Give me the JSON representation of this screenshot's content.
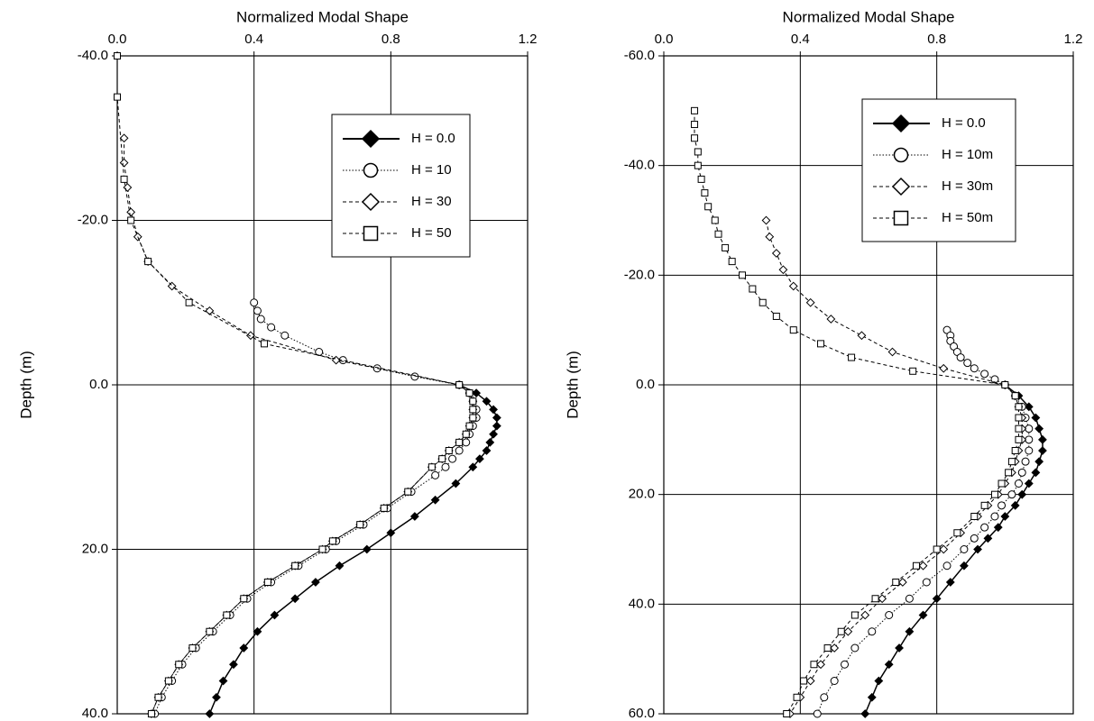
{
  "chart_data": [
    {
      "type": "line",
      "title": "Normalized Modal Shape",
      "y_label": "Depth (m)",
      "xlim": [
        0,
        1.2
      ],
      "xticks": [
        {
          "value": 0,
          "label": "0.0"
        },
        0.4,
        0.8,
        1.2
      ],
      "ylim": [
        -40,
        40
      ],
      "yticks": [
        {
          "value": -40,
          "label": "-40.0"
        },
        {
          "value": -20,
          "label": "-20.0"
        },
        {
          "value": 0,
          "label": "0.0"
        },
        {
          "value": 20,
          "label": "20.0"
        },
        {
          "value": 40,
          "label": "40.0"
        }
      ],
      "y_inverted": true,
      "grid": true,
      "legend": "upper right",
      "series": [
        {
          "name": "H = 0.0",
          "color": "#000000",
          "line_style": "solid",
          "marker": "diamond-filled",
          "x": [
            1.0,
            1.05,
            1.08,
            1.1,
            1.11,
            1.11,
            1.1,
            1.09,
            1.08,
            1.06,
            1.04,
            0.99,
            0.93,
            0.87,
            0.8,
            0.73,
            0.65,
            0.58,
            0.52,
            0.46,
            0.41,
            0.37,
            0.34,
            0.31,
            0.29,
            0.27
          ],
          "y": [
            0,
            1,
            2,
            3,
            4,
            5,
            6,
            7,
            8,
            9,
            10,
            12,
            14,
            16,
            18,
            20,
            22,
            24,
            26,
            28,
            30,
            32,
            34,
            36,
            38,
            40
          ]
        },
        {
          "name": "H = 10",
          "color": "#000000",
          "line_style": "dotted",
          "marker": "circle",
          "x": [
            0.4,
            0.41,
            0.42,
            0.45,
            0.49,
            0.59,
            0.66,
            0.76,
            0.87,
            1.0,
            1.03,
            1.04,
            1.05,
            1.05,
            1.04,
            1.03,
            1.02,
            1.0,
            0.98,
            0.96,
            0.93,
            0.86,
            0.79,
            0.72,
            0.64,
            0.61,
            0.53,
            0.45,
            0.38,
            0.33,
            0.28,
            0.23,
            0.19,
            0.16,
            0.13,
            0.11
          ],
          "y": [
            -10,
            -9,
            -8,
            -7,
            -6,
            -4,
            -3,
            -2,
            -1,
            0,
            1,
            2,
            3,
            4,
            5,
            6,
            7,
            8,
            9,
            10,
            11,
            13,
            15,
            17,
            19,
            20,
            22,
            24,
            26,
            28,
            30,
            32,
            34,
            36,
            38,
            40
          ]
        },
        {
          "name": "H = 30",
          "color": "#000000",
          "line_style": "dashed",
          "marker": "diamond",
          "x": [
            0.02,
            0.02,
            0.03,
            0.04,
            0.06,
            0.09,
            0.16,
            0.27,
            0.39,
            0.64,
            1.0,
            1.03,
            1.04,
            1.04,
            1.04,
            1.03,
            1.02,
            1.0,
            0.97,
            0.95,
            0.92,
            0.85,
            0.78,
            0.71,
            0.63,
            0.6,
            0.52,
            0.44,
            0.37,
            0.32,
            0.27,
            0.22,
            0.18,
            0.15,
            0.12,
            0.1
          ],
          "y": [
            -30,
            -27,
            -24,
            -21,
            -18,
            -15,
            -12,
            -9,
            -6,
            -3,
            0,
            1,
            2,
            3,
            4,
            5,
            6,
            7,
            8,
            9,
            10,
            13,
            15,
            17,
            19,
            20,
            22,
            24,
            26,
            28,
            30,
            32,
            34,
            36,
            38,
            40
          ]
        },
        {
          "name": "H = 50",
          "color": "#000000",
          "line_style": "dashed",
          "marker": "square",
          "x": [
            0.0,
            0.0,
            0.02,
            0.04,
            0.09,
            0.21,
            0.43,
            1.0,
            1.03,
            1.04,
            1.04,
            1.04,
            1.03,
            1.02,
            1.0,
            0.97,
            0.95,
            0.92,
            0.85,
            0.78,
            0.71,
            0.63,
            0.6,
            0.52,
            0.44,
            0.37,
            0.32,
            0.27,
            0.22,
            0.18,
            0.15,
            0.12,
            0.1
          ],
          "y": [
            -40,
            -35,
            -25,
            -20,
            -15,
            -10,
            -5,
            0,
            1,
            2,
            3,
            4,
            5,
            6,
            7,
            8,
            9,
            10,
            13,
            15,
            17,
            19,
            20,
            22,
            24,
            26,
            28,
            30,
            32,
            34,
            36,
            38,
            40
          ]
        }
      ]
    },
    {
      "type": "line",
      "title": "Normalized Modal Shape",
      "y_label": "Depth (m)",
      "xlim": [
        0,
        1.2
      ],
      "xticks": [
        {
          "value": 0,
          "label": "0.0"
        },
        0.4,
        0.8,
        1.2
      ],
      "ylim": [
        -60,
        60
      ],
      "yticks": [
        {
          "value": -60,
          "label": "-60.0"
        },
        {
          "value": -40,
          "label": "-40.0"
        },
        {
          "value": -20,
          "label": "-20.0"
        },
        {
          "value": 0,
          "label": "0.0"
        },
        {
          "value": 20,
          "label": "20.0"
        },
        {
          "value": 40,
          "label": "40.0"
        },
        {
          "value": 60,
          "label": "60.0"
        }
      ],
      "y_inverted": true,
      "grid": true,
      "legend": "upper right",
      "series": [
        {
          "name": "H = 0.0",
          "color": "#000000",
          "line_style": "solid",
          "marker": "diamond-filled",
          "x": [
            1.0,
            1.04,
            1.07,
            1.09,
            1.1,
            1.11,
            1.11,
            1.1,
            1.09,
            1.07,
            1.05,
            1.03,
            1.0,
            0.98,
            0.95,
            0.92,
            0.88,
            0.84,
            0.8,
            0.76,
            0.72,
            0.69,
            0.66,
            0.63,
            0.61,
            0.59
          ],
          "y": [
            0,
            2,
            4,
            6,
            8,
            10,
            12,
            14,
            16,
            18,
            20,
            22,
            24,
            26,
            28,
            30,
            33,
            36,
            39,
            42,
            45,
            48,
            51,
            54,
            57,
            60
          ]
        },
        {
          "name": "H = 10m",
          "color": "#000000",
          "line_style": "dotted",
          "marker": "circle",
          "x": [
            0.83,
            0.84,
            0.84,
            0.85,
            0.86,
            0.87,
            0.89,
            0.91,
            0.94,
            0.97,
            1.0,
            1.03,
            1.05,
            1.06,
            1.07,
            1.07,
            1.07,
            1.06,
            1.05,
            1.04,
            1.02,
            0.99,
            0.97,
            0.94,
            0.91,
            0.88,
            0.83,
            0.77,
            0.72,
            0.66,
            0.61,
            0.56,
            0.53,
            0.5,
            0.47,
            0.45
          ],
          "y": [
            -10,
            -9,
            -8,
            -7,
            -6,
            -5,
            -4,
            -3,
            -2,
            -1,
            0,
            2,
            4,
            6,
            8,
            10,
            12,
            14,
            16,
            18,
            20,
            22,
            24,
            26,
            28,
            30,
            33,
            36,
            39,
            42,
            45,
            48,
            51,
            54,
            57,
            60
          ]
        },
        {
          "name": "H = 30m",
          "color": "#000000",
          "line_style": "dashed",
          "marker": "diamond",
          "x": [
            0.3,
            0.31,
            0.33,
            0.35,
            0.38,
            0.43,
            0.49,
            0.58,
            0.67,
            0.82,
            1.0,
            1.03,
            1.04,
            1.05,
            1.05,
            1.05,
            1.04,
            1.03,
            1.02,
            1.0,
            0.98,
            0.95,
            0.92,
            0.87,
            0.82,
            0.76,
            0.7,
            0.64,
            0.59,
            0.54,
            0.5,
            0.46,
            0.43,
            0.4,
            0.37
          ],
          "y": [
            -30,
            -27,
            -24,
            -21,
            -18,
            -15,
            -12,
            -9,
            -6,
            -3,
            0,
            2,
            4,
            6,
            8,
            10,
            12,
            14,
            16,
            18,
            20,
            22,
            24,
            27,
            30,
            33,
            36,
            39,
            42,
            45,
            48,
            51,
            54,
            57,
            60
          ]
        },
        {
          "name": "H = 50m",
          "color": "#000000",
          "line_style": "dashed",
          "marker": "square",
          "x": [
            0.09,
            0.09,
            0.09,
            0.1,
            0.1,
            0.11,
            0.12,
            0.13,
            0.15,
            0.16,
            0.18,
            0.2,
            0.23,
            0.26,
            0.29,
            0.33,
            0.38,
            0.46,
            0.55,
            0.73,
            1.0,
            1.03,
            1.04,
            1.04,
            1.04,
            1.04,
            1.03,
            1.02,
            1.01,
            0.99,
            0.97,
            0.94,
            0.91,
            0.86,
            0.8,
            0.74,
            0.68,
            0.62,
            0.56,
            0.52,
            0.48,
            0.44,
            0.41,
            0.39,
            0.36
          ],
          "y": [
            -50,
            -47.5,
            -45,
            -42.5,
            -40,
            -37.5,
            -35,
            -32.5,
            -30,
            -27.5,
            -25,
            -22.5,
            -20,
            -17.5,
            -15,
            -12.5,
            -10,
            -7.5,
            -5,
            -2.5,
            0,
            2,
            4,
            6,
            8,
            10,
            12,
            14,
            16,
            18,
            20,
            22,
            24,
            27,
            30,
            33,
            36,
            39,
            42,
            45,
            48,
            51,
            54,
            57,
            60
          ]
        }
      ]
    }
  ]
}
